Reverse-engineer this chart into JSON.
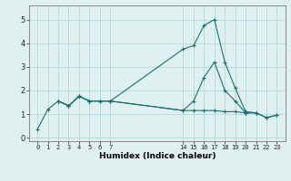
{
  "xlabel": "Humidex (Indice chaleur)",
  "bg_color": "#dff0f0",
  "line_color": "#1a7070",
  "grid_color": "#b8d8d8",
  "line1_x": [
    0,
    1,
    2,
    3,
    4,
    5,
    6,
    7,
    14,
    15,
    16,
    17,
    18,
    19,
    20,
    21,
    22,
    23
  ],
  "line1_y": [
    0.35,
    1.2,
    1.55,
    1.35,
    1.75,
    1.55,
    1.55,
    1.55,
    1.15,
    1.15,
    1.15,
    1.15,
    1.1,
    1.1,
    1.05,
    1.05,
    0.85,
    0.95
  ],
  "line2_x": [
    2,
    3,
    4,
    5,
    6,
    7,
    14,
    15,
    16,
    17,
    18,
    19,
    20,
    21
  ],
  "line2_y": [
    1.55,
    1.35,
    1.75,
    1.55,
    1.55,
    1.55,
    3.75,
    3.9,
    4.75,
    5.0,
    3.2,
    2.1,
    1.1,
    1.05
  ],
  "line3_x": [
    2,
    3,
    4,
    5,
    6,
    7,
    14,
    15,
    16,
    17,
    18,
    19,
    20,
    21,
    22,
    23
  ],
  "line3_y": [
    1.55,
    1.35,
    1.75,
    1.55,
    1.55,
    1.55,
    1.15,
    1.55,
    2.55,
    3.2,
    2.0,
    1.55,
    1.05,
    1.05,
    0.85,
    0.95
  ],
  "xticks": [
    0,
    1,
    2,
    3,
    4,
    5,
    6,
    7,
    14,
    15,
    16,
    17,
    18,
    19,
    20,
    21,
    22,
    23
  ],
  "xtick_labels": [
    "0",
    "1",
    "2",
    "3",
    "4",
    "5",
    "6",
    "7",
    "14",
    "15",
    "16",
    "17",
    "18",
    "19",
    "20",
    "21",
    "22",
    "23"
  ],
  "yticks": [
    0,
    1,
    2,
    3,
    4,
    5
  ],
  "ylim": [
    -0.15,
    5.6
  ],
  "xlim": [
    -0.8,
    23.8
  ]
}
